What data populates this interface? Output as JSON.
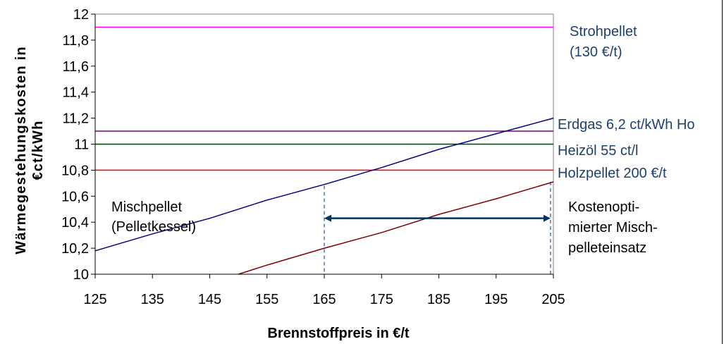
{
  "chart_data": {
    "type": "line",
    "xlabel": "Brennstoffpreis in €/t",
    "ylabel_lines": [
      "Wärmegestehungskosten in",
      "€ct/kWh"
    ],
    "xlim": [
      125,
      205
    ],
    "ylim": [
      10,
      12
    ],
    "x_ticks": [
      "125",
      "135",
      "145",
      "155",
      "165",
      "175",
      "185",
      "195",
      "205"
    ],
    "y_ticks": [
      "10",
      "10,2",
      "10,4",
      "10,6",
      "10,8",
      "11",
      "11,2",
      "11,4",
      "11,6",
      "11,8",
      "12"
    ],
    "grid": false,
    "series": [
      {
        "name": "Strohpellet (130 €/t)",
        "color": "#ff00ff",
        "x": [
          125,
          205
        ],
        "y": [
          11.9,
          11.9
        ]
      },
      {
        "name": "Erdgas 6,2 ct/kWh Ho",
        "color": "#800080",
        "x": [
          125,
          205
        ],
        "y": [
          11.1,
          11.1
        ]
      },
      {
        "name": "Heizöl 55 ct/l",
        "color": "#004000",
        "x": [
          125,
          205
        ],
        "y": [
          11.0,
          11.0
        ]
      },
      {
        "name": "Holzpellet 200 €/t",
        "color": "#ff0000",
        "x": [
          125,
          205
        ],
        "y": [
          10.8,
          10.8
        ]
      },
      {
        "name": "Mischpellet (Pelletkessel)",
        "color": "#000080",
        "x": [
          125,
          135,
          145,
          155,
          165,
          175,
          185,
          195,
          205
        ],
        "y": [
          10.18,
          10.31,
          10.43,
          10.57,
          10.69,
          10.82,
          10.96,
          11.08,
          11.2
        ]
      },
      {
        "name": "",
        "color": "#800000",
        "x": [
          150,
          155,
          165,
          175,
          185,
          195,
          205
        ],
        "y": [
          10.0,
          10.07,
          10.2,
          10.32,
          10.46,
          10.58,
          10.71
        ]
      }
    ],
    "annotations": {
      "strohpellet": [
        "Strohpellet",
        "(130 €/t)"
      ],
      "erdgas": "Erdgas 6,2 ct/kWh Ho",
      "heizoel": "Heizöl 55 ct/l",
      "holzpellet": "Holzpellet 200 €/t",
      "mischpellet": [
        "Mischpellet",
        "(Pelletkessel)"
      ],
      "kostenoptimiert": [
        "Kostenopti-",
        "mierter Misch-",
        "pelleteinsatz"
      ]
    },
    "range_marker": {
      "from": 165,
      "to": 204.5,
      "color": "#003366"
    }
  }
}
